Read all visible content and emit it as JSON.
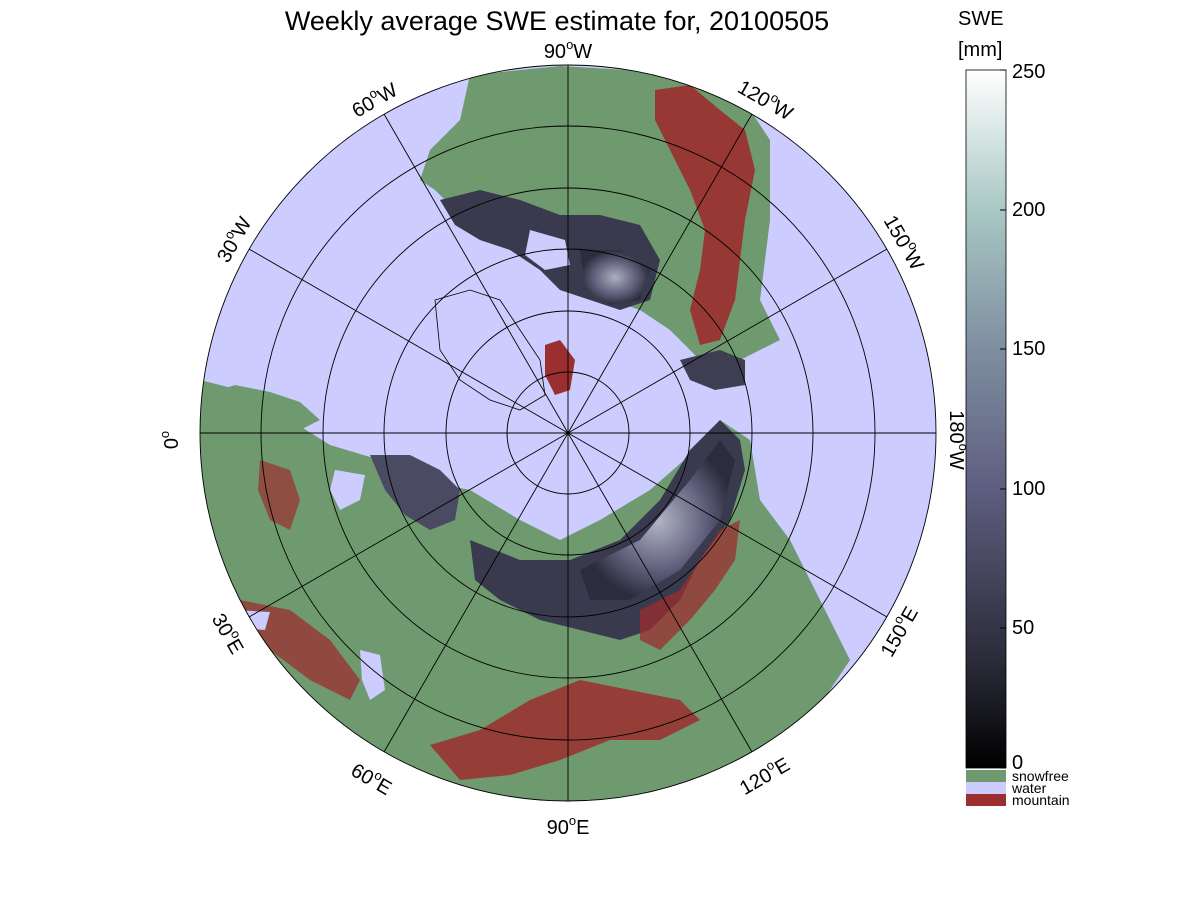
{
  "map": {
    "title": "Weekly average SWE estimate for, 20100505",
    "longitude_labels": [
      {
        "deg": "90",
        "dir": "W"
      },
      {
        "deg": "120",
        "dir": "W"
      },
      {
        "deg": "150",
        "dir": "W"
      },
      {
        "deg": "180",
        "dir": "W"
      },
      {
        "deg": "150",
        "dir": "E"
      },
      {
        "deg": "120",
        "dir": "E"
      },
      {
        "deg": "90",
        "dir": "E"
      },
      {
        "deg": "60",
        "dir": "E"
      },
      {
        "deg": "30",
        "dir": "E"
      },
      {
        "deg": "0",
        "dir": ""
      },
      {
        "deg": "30",
        "dir": "W"
      },
      {
        "deg": "60",
        "dir": "W"
      }
    ],
    "colors": {
      "water": "#ccccff",
      "snowfree": "#6f9a6f",
      "mountain": "#9b2e2e",
      "snow_low": "#0a0a10",
      "snow_mid": "#5a5a78",
      "snow_high": "#ffffff"
    }
  },
  "colorbar": {
    "title_line1": "SWE",
    "title_line2": "[mm]",
    "range": [
      0,
      250
    ],
    "ticks": [
      "0",
      "50",
      "100",
      "150",
      "200",
      "250"
    ],
    "classes": [
      {
        "label": "snowfree",
        "color": "#6f9a6f"
      },
      {
        "label": "water",
        "color": "#ccccff"
      },
      {
        "label": "mountain",
        "color": "#9b2e2e"
      }
    ]
  }
}
